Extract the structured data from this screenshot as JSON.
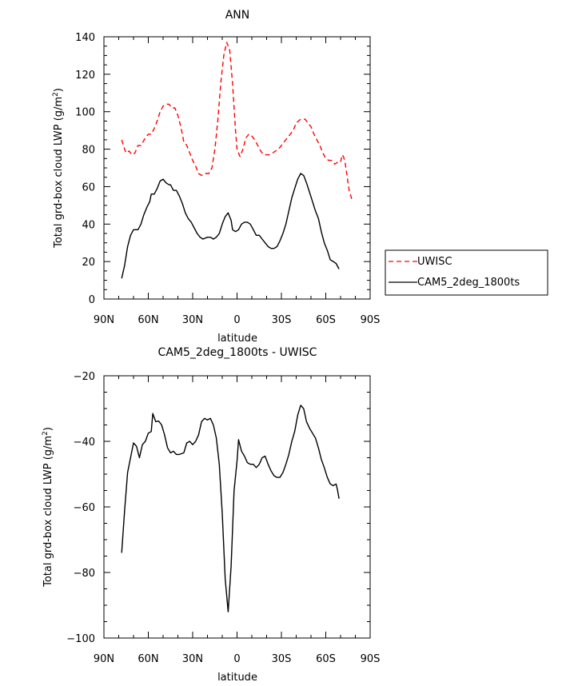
{
  "chart_data": [
    {
      "type": "line",
      "title": "ANN",
      "xlabel": "latitude",
      "ylabel": "Total grd-box cloud LWP (g/m²)",
      "xlim": [
        -90,
        90
      ],
      "ylim": [
        0,
        140
      ],
      "x_ticks": [
        -90,
        -60,
        -30,
        0,
        30,
        60,
        90
      ],
      "x_tick_labels": [
        "90N",
        "60N",
        "30N",
        "0",
        "30S",
        "60S",
        "90S"
      ],
      "y_ticks": [
        0,
        20,
        40,
        60,
        80,
        100,
        120,
        140
      ],
      "y_tick_labels": [
        "0",
        "20",
        "40",
        "60",
        "80",
        "100",
        "120",
        "140"
      ],
      "legend_position": "right",
      "grid": false,
      "series": [
        {
          "name": "UWISC",
          "color": "#ff0000",
          "dash": "dashed",
          "points": [
            [
              -78,
              85
            ],
            [
              -76,
              80
            ],
            [
              -75,
              78
            ],
            [
              -73,
              79
            ],
            [
              -71,
              77
            ],
            [
              -69,
              78
            ],
            [
              -67,
              82
            ],
            [
              -65,
              82
            ],
            [
              -62,
              86
            ],
            [
              -60,
              88
            ],
            [
              -58,
              88
            ],
            [
              -56,
              91
            ],
            [
              -54,
              95
            ],
            [
              -52,
              100
            ],
            [
              -50,
              103
            ],
            [
              -48,
              104
            ],
            [
              -46,
              104
            ],
            [
              -44,
              102
            ],
            [
              -42,
              102
            ],
            [
              -40,
              98
            ],
            [
              -38,
              92
            ],
            [
              -36,
              84
            ],
            [
              -34,
              82
            ],
            [
              -32,
              78
            ],
            [
              -30,
              74
            ],
            [
              -28,
              71
            ],
            [
              -26,
              67
            ],
            [
              -24,
              66
            ],
            [
              -22,
              67
            ],
            [
              -19,
              67
            ],
            [
              -17,
              70
            ],
            [
              -15,
              80
            ],
            [
              -13,
              95
            ],
            [
              -11,
              115
            ],
            [
              -9,
              130
            ],
            [
              -7,
              137
            ],
            [
              -5,
              133
            ],
            [
              -3,
              115
            ],
            [
              -1,
              90
            ],
            [
              0,
              80
            ],
            [
              2,
              76
            ],
            [
              4,
              80
            ],
            [
              6,
              86
            ],
            [
              8,
              88
            ],
            [
              10,
              87
            ],
            [
              12,
              85
            ],
            [
              14,
              82
            ],
            [
              16,
              79
            ],
            [
              18,
              77
            ],
            [
              20,
              77
            ],
            [
              22,
              77
            ],
            [
              24,
              78
            ],
            [
              26,
              79
            ],
            [
              28,
              80
            ],
            [
              30,
              82
            ],
            [
              32,
              84
            ],
            [
              34,
              86
            ],
            [
              36,
              88
            ],
            [
              38,
              90
            ],
            [
              40,
              94
            ],
            [
              43,
              96
            ],
            [
              46,
              96
            ],
            [
              48,
              94
            ],
            [
              50,
              92
            ],
            [
              52,
              88
            ],
            [
              54,
              85
            ],
            [
              56,
              82
            ],
            [
              58,
              78
            ],
            [
              60,
              75
            ],
            [
              62,
              74
            ],
            [
              64,
              74
            ],
            [
              66,
              72
            ],
            [
              68,
              73
            ],
            [
              70,
              73
            ],
            [
              71,
              77
            ],
            [
              72,
              76
            ],
            [
              73,
              73
            ],
            [
              74,
              68
            ],
            [
              75,
              62
            ],
            [
              76,
              57
            ],
            [
              77,
              55
            ],
            [
              78,
              52
            ]
          ]
        },
        {
          "name": "CAM5_2deg_1800ts",
          "color": "#000000",
          "dash": "solid",
          "points": [
            [
              -78,
              11
            ],
            [
              -76,
              18
            ],
            [
              -74,
              28
            ],
            [
              -72,
              34
            ],
            [
              -70,
              37
            ],
            [
              -67,
              37
            ],
            [
              -65,
              40
            ],
            [
              -63,
              45
            ],
            [
              -61,
              49
            ],
            [
              -59,
              52
            ],
            [
              -58,
              56
            ],
            [
              -56,
              56
            ],
            [
              -54,
              59
            ],
            [
              -52,
              63
            ],
            [
              -50,
              64
            ],
            [
              -48,
              62
            ],
            [
              -46,
              61
            ],
            [
              -45,
              61
            ],
            [
              -43,
              58
            ],
            [
              -41,
              58
            ],
            [
              -39,
              55
            ],
            [
              -37,
              51
            ],
            [
              -35,
              46
            ],
            [
              -33,
              43
            ],
            [
              -31,
              41
            ],
            [
              -29,
              38
            ],
            [
              -27,
              35
            ],
            [
              -25,
              33
            ],
            [
              -23,
              32
            ],
            [
              -20,
              33
            ],
            [
              -18,
              33
            ],
            [
              -16,
              32
            ],
            [
              -14,
              33
            ],
            [
              -12,
              35
            ],
            [
              -10,
              40
            ],
            [
              -8,
              44
            ],
            [
              -6,
              46
            ],
            [
              -4,
              42
            ],
            [
              -3,
              37
            ],
            [
              -1,
              36
            ],
            [
              1,
              37
            ],
            [
              3,
              40
            ],
            [
              5,
              41
            ],
            [
              7,
              41
            ],
            [
              9,
              40
            ],
            [
              11,
              37
            ],
            [
              13,
              34
            ],
            [
              15,
              34
            ],
            [
              17,
              32
            ],
            [
              19,
              30
            ],
            [
              21,
              28
            ],
            [
              23,
              27
            ],
            [
              25,
              27
            ],
            [
              27,
              28
            ],
            [
              29,
              31
            ],
            [
              31,
              35
            ],
            [
              33,
              40
            ],
            [
              35,
              47
            ],
            [
              37,
              54
            ],
            [
              39,
              59
            ],
            [
              41,
              64
            ],
            [
              43,
              67
            ],
            [
              45,
              66
            ],
            [
              47,
              62
            ],
            [
              49,
              57
            ],
            [
              51,
              52
            ],
            [
              53,
              47
            ],
            [
              55,
              43
            ],
            [
              57,
              36
            ],
            [
              59,
              30
            ],
            [
              61,
              26
            ],
            [
              63,
              21
            ],
            [
              65,
              20
            ],
            [
              67,
              19
            ],
            [
              69,
              16
            ]
          ]
        }
      ]
    },
    {
      "type": "line",
      "title": "CAM5_2deg_1800ts - UWISC",
      "xlabel": "latitude",
      "ylabel": "Total grd-box cloud LWP (g/m²)",
      "xlim": [
        -90,
        90
      ],
      "ylim": [
        -100,
        -20
      ],
      "x_ticks": [
        -90,
        -60,
        -30,
        0,
        30,
        60,
        90
      ],
      "x_tick_labels": [
        "90N",
        "60N",
        "30N",
        "0",
        "30S",
        "60S",
        "90S"
      ],
      "y_ticks": [
        -100,
        -80,
        -60,
        -40,
        -20
      ],
      "y_tick_labels": [
        "−100",
        "−80",
        "−60",
        "−40",
        "−20"
      ],
      "grid": false,
      "series": [
        {
          "color": "#000000",
          "dash": "solid",
          "points": [
            [
              -78,
              -74
            ],
            [
              -76,
              -61
            ],
            [
              -74,
              -49.5
            ],
            [
              -72,
              -45
            ],
            [
              -70,
              -40.5
            ],
            [
              -68,
              -41.5
            ],
            [
              -66,
              -45
            ],
            [
              -64,
              -41
            ],
            [
              -62,
              -40
            ],
            [
              -60,
              -37.5
            ],
            [
              -58,
              -37
            ],
            [
              -57,
              -31.5
            ],
            [
              -55,
              -34
            ],
            [
              -53,
              -33.8
            ],
            [
              -51,
              -35
            ],
            [
              -49,
              -38
            ],
            [
              -47,
              -42
            ],
            [
              -45,
              -43.5
            ],
            [
              -43,
              -43
            ],
            [
              -41,
              -44
            ],
            [
              -39,
              -44
            ],
            [
              -36,
              -43.5
            ],
            [
              -34,
              -40.5
            ],
            [
              -32,
              -40
            ],
            [
              -30,
              -41
            ],
            [
              -28,
              -40
            ],
            [
              -26,
              -38
            ],
            [
              -24,
              -34
            ],
            [
              -22,
              -33
            ],
            [
              -20,
              -33.5
            ],
            [
              -18,
              -33
            ],
            [
              -16,
              -35
            ],
            [
              -14,
              -39
            ],
            [
              -12,
              -47
            ],
            [
              -10,
              -62
            ],
            [
              -8,
              -82
            ],
            [
              -6,
              -92
            ],
            [
              -4,
              -78
            ],
            [
              -2,
              -55
            ],
            [
              0,
              -46
            ],
            [
              1,
              -39.5
            ],
            [
              3,
              -43
            ],
            [
              5,
              -44.5
            ],
            [
              7,
              -46.5
            ],
            [
              9,
              -47
            ],
            [
              11,
              -47
            ],
            [
              13,
              -48
            ],
            [
              15,
              -47
            ],
            [
              17,
              -45
            ],
            [
              19,
              -44.5
            ],
            [
              21,
              -47
            ],
            [
              23,
              -49
            ],
            [
              25,
              -50.5
            ],
            [
              27,
              -51
            ],
            [
              29,
              -51
            ],
            [
              31,
              -49.5
            ],
            [
              33,
              -47
            ],
            [
              35,
              -44
            ],
            [
              37,
              -40
            ],
            [
              39,
              -37
            ],
            [
              41,
              -32
            ],
            [
              43,
              -29
            ],
            [
              45,
              -30
            ],
            [
              47,
              -34
            ],
            [
              49,
              -36
            ],
            [
              51,
              -37.5
            ],
            [
              53,
              -39
            ],
            [
              55,
              -42
            ],
            [
              57,
              -45.5
            ],
            [
              59,
              -48
            ],
            [
              61,
              -51
            ],
            [
              63,
              -53
            ],
            [
              65,
              -53.5
            ],
            [
              67,
              -53
            ],
            [
              68,
              -55
            ],
            [
              69,
              -57.5
            ]
          ]
        }
      ]
    }
  ]
}
